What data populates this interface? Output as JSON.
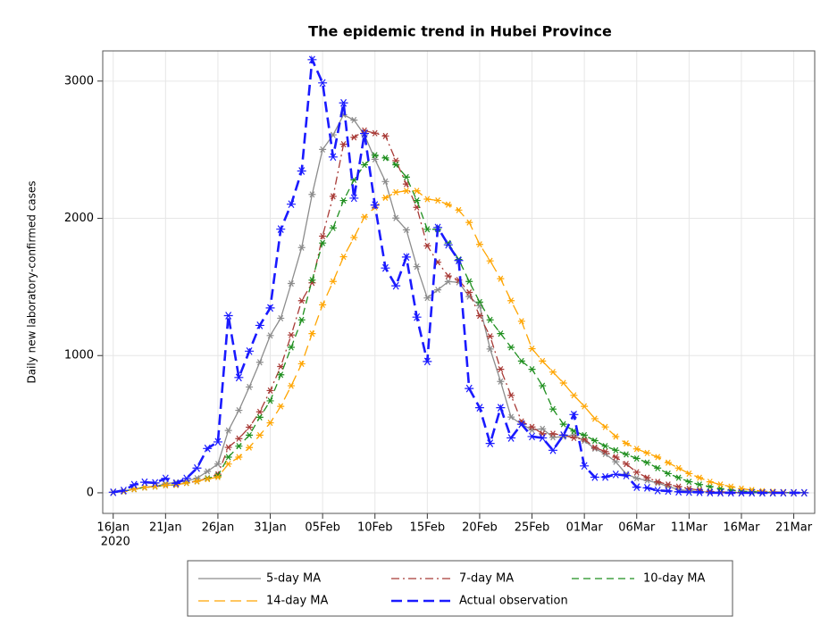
{
  "chart_data": {
    "type": "line",
    "title": "The epidemic trend in Hubei Province",
    "y_label": "Daily new laboratory-confirmed cases",
    "x_year": "2020",
    "x": [
      "2020-01-16",
      "2020-01-17",
      "2020-01-18",
      "2020-01-19",
      "2020-01-20",
      "2020-01-21",
      "2020-01-22",
      "2020-01-23",
      "2020-01-24",
      "2020-01-25",
      "2020-01-26",
      "2020-01-27",
      "2020-01-28",
      "2020-01-29",
      "2020-01-30",
      "2020-01-31",
      "2020-02-01",
      "2020-02-02",
      "2020-02-03",
      "2020-02-04",
      "2020-02-05",
      "2020-02-06",
      "2020-02-07",
      "2020-02-08",
      "2020-02-09",
      "2020-02-10",
      "2020-02-11",
      "2020-02-12",
      "2020-02-13",
      "2020-02-14",
      "2020-02-15",
      "2020-02-16",
      "2020-02-17",
      "2020-02-18",
      "2020-02-19",
      "2020-02-20",
      "2020-02-21",
      "2020-02-22",
      "2020-02-23",
      "2020-02-24",
      "2020-02-25",
      "2020-02-26",
      "2020-02-27",
      "2020-02-28",
      "2020-02-29",
      "2020-03-01",
      "2020-03-02",
      "2020-03-03",
      "2020-03-04",
      "2020-03-05",
      "2020-03-06",
      "2020-03-07",
      "2020-03-08",
      "2020-03-09",
      "2020-03-10",
      "2020-03-11",
      "2020-03-12",
      "2020-03-13",
      "2020-03-14",
      "2020-03-15",
      "2020-03-16",
      "2020-03-17",
      "2020-03-18",
      "2020-03-19",
      "2020-03-20",
      "2020-03-21",
      "2020-03-22"
    ],
    "xlim": [
      "2020-01-15",
      "2020-03-23"
    ],
    "xticks": [
      {
        "value": "2020-01-16",
        "label": "16Jan"
      },
      {
        "value": "2020-01-21",
        "label": "21Jan"
      },
      {
        "value": "2020-01-26",
        "label": "26Jan"
      },
      {
        "value": "2020-01-31",
        "label": "31Jan"
      },
      {
        "value": "2020-02-05",
        "label": "05Feb"
      },
      {
        "value": "2020-02-10",
        "label": "10Feb"
      },
      {
        "value": "2020-02-15",
        "label": "15Feb"
      },
      {
        "value": "2020-02-20",
        "label": "20Feb"
      },
      {
        "value": "2020-02-25",
        "label": "25Feb"
      },
      {
        "value": "2020-03-01",
        "label": "01Mar"
      },
      {
        "value": "2020-03-06",
        "label": "06Mar"
      },
      {
        "value": "2020-03-11",
        "label": "11Mar"
      },
      {
        "value": "2020-03-16",
        "label": "16Mar"
      },
      {
        "value": "2020-03-21",
        "label": "21Mar"
      }
    ],
    "ylim": [
      -150,
      3220
    ],
    "yticks": [
      0,
      1000,
      2000,
      3000
    ],
    "grid": true,
    "legend": "bottom",
    "series": [
      {
        "name": "5-day MA",
        "color": "#8c8c8c",
        "dash": "solid",
        "values": [
          4,
          11,
          27,
          39,
          46,
          66,
          76,
          86,
          106,
          156,
          210,
          454,
          601,
          771,
          951,
          1146,
          1272,
          1525,
          1787,
          2174,
          2502,
          2608,
          2755,
          2716,
          2608,
          2430,
          2268,
          2002,
          1916,
          1648,
          1420,
          1479,
          1539,
          1534,
          1430,
          1363,
          1048,
          811,
          552,
          500,
          458,
          466,
          404,
          408,
          422,
          379,
          322,
          283,
          226,
          137,
          106,
          90,
          71,
          47,
          23,
          16,
          9,
          6,
          4,
          2,
          1,
          0,
          0,
          0,
          0,
          0,
          0
        ]
      },
      {
        "name": "7-day MA",
        "color": "#a83a36",
        "dash": "dashdot",
        "values": [
          4,
          11,
          27,
          39,
          46,
          55,
          58,
          72,
          84,
          105,
          135,
          331,
          395,
          478,
          590,
          745,
          920,
          1150,
          1400,
          1530,
          1870,
          2160,
          2540,
          2590,
          2640,
          2620,
          2600,
          2420,
          2250,
          2080,
          1800,
          1680,
          1580,
          1550,
          1460,
          1290,
          1140,
          900,
          710,
          520,
          480,
          430,
          430,
          420,
          400,
          390,
          330,
          300,
          260,
          210,
          150,
          110,
          80,
          60,
          45,
          30,
          20,
          10,
          6,
          4,
          2,
          1,
          0,
          0,
          0,
          0,
          0
        ]
      },
      {
        "name": "10-day MA",
        "color": "#1f8f1f",
        "dash": "dashed",
        "values": [
          4,
          11,
          27,
          39,
          46,
          55,
          58,
          72,
          84,
          105,
          125,
          260,
          340,
          420,
          550,
          670,
          860,
          1060,
          1260,
          1550,
          1820,
          1930,
          2130,
          2280,
          2390,
          2460,
          2440,
          2390,
          2300,
          2130,
          1920,
          1920,
          1820,
          1700,
          1540,
          1390,
          1260,
          1160,
          1060,
          960,
          900,
          780,
          610,
          500,
          450,
          420,
          380,
          340,
          310,
          280,
          250,
          220,
          180,
          140,
          110,
          80,
          60,
          45,
          30,
          20,
          12,
          8,
          5,
          3,
          1,
          0,
          0
        ]
      },
      {
        "name": "14-day MA",
        "color": "#ffa500",
        "dash": "longdash",
        "values": [
          4,
          11,
          27,
          39,
          46,
          55,
          58,
          72,
          84,
          100,
          115,
          210,
          260,
          330,
          420,
          510,
          630,
          780,
          940,
          1160,
          1370,
          1540,
          1720,
          1860,
          2010,
          2080,
          2150,
          2190,
          2200,
          2200,
          2140,
          2130,
          2100,
          2060,
          1970,
          1810,
          1690,
          1560,
          1400,
          1250,
          1050,
          960,
          880,
          800,
          710,
          630,
          540,
          480,
          410,
          360,
          320,
          290,
          260,
          220,
          180,
          140,
          110,
          80,
          60,
          45,
          30,
          20,
          12,
          8,
          4,
          2,
          0
        ]
      },
      {
        "name": "Actual observation",
        "color": "#1a1aff",
        "dash": "thickdash",
        "values": [
          4,
          17,
          59,
          77,
          72,
          105,
          69,
          105,
          180,
          323,
          371,
          1291,
          840,
          1032,
          1220,
          1347,
          1921,
          2103,
          2345,
          3156,
          2987,
          2447,
          2841,
          2147,
          2618,
          2097,
          1638,
          1508,
          1718,
          1280,
          957,
          1933,
          1807,
          1693,
          760,
          620,
          360,
          620,
          400,
          500,
          410,
          400,
          310,
          420,
          570,
          196,
          114,
          115,
          134,
          126,
          41,
          36,
          17,
          13,
          8,
          5,
          4,
          1,
          0,
          0,
          0,
          0,
          0,
          0,
          0,
          0,
          0
        ]
      }
    ]
  }
}
